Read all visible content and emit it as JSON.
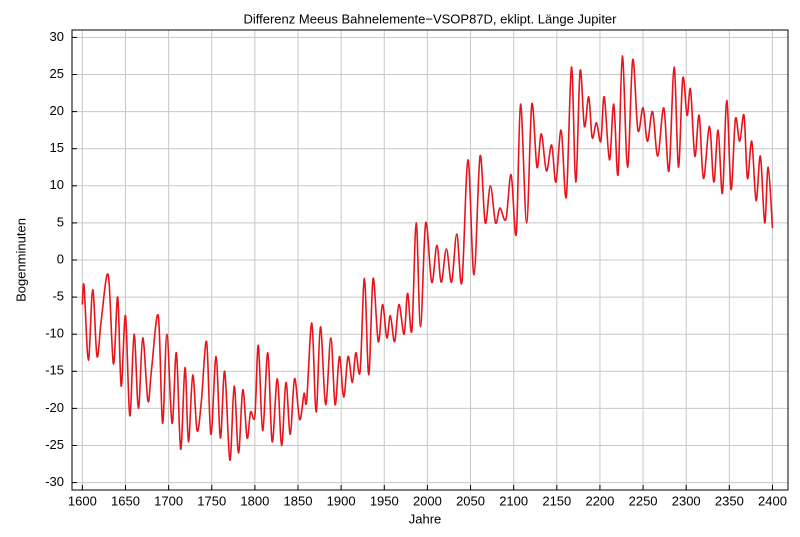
{
  "chart_data": {
    "type": "line",
    "title": "Differenz Meeus Bahnelemente−VSOP87D, eklipt. Länge Jupiter",
    "x_label": "Jahre",
    "y_label": "Bogenminuten",
    "xlim": [
      1588,
      2418
    ],
    "ylim": [
      -31,
      31
    ],
    "xticks": [
      1600,
      1650,
      1700,
      1750,
      1800,
      1850,
      1900,
      1950,
      2000,
      2050,
      2100,
      2150,
      2200,
      2250,
      2300,
      2350,
      2400
    ],
    "yticks": [
      -30,
      -25,
      -20,
      -15,
      -10,
      -5,
      0,
      5,
      10,
      15,
      20,
      25,
      30
    ],
    "grid": true,
    "x": [
      1600,
      1602,
      1607,
      1612,
      1617,
      1622,
      1630,
      1636,
      1641,
      1645,
      1650,
      1655,
      1660,
      1665,
      1670,
      1676,
      1680,
      1688,
      1693,
      1698,
      1704,
      1709,
      1714,
      1719,
      1723,
      1728,
      1733,
      1738,
      1744,
      1749,
      1755,
      1760,
      1765,
      1771,
      1776,
      1781,
      1786,
      1791,
      1795,
      1800,
      1804,
      1809,
      1815,
      1820,
      1826,
      1831,
      1836,
      1841,
      1846,
      1852,
      1857,
      1860,
      1866,
      1871,
      1876,
      1882,
      1888,
      1893,
      1898,
      1903,
      1908,
      1913,
      1917,
      1922,
      1927,
      1932,
      1937,
      1943,
      1948,
      1953,
      1957,
      1962,
      1967,
      1973,
      1977,
      1982,
      1987,
      1992,
      1998,
      2005,
      2011,
      2016,
      2022,
      2028,
      2034,
      2040,
      2047,
      2054,
      2061,
      2067,
      2073,
      2079,
      2084,
      2091,
      2097,
      2103,
      2108,
      2115,
      2121,
      2127,
      2132,
      2138,
      2144,
      2149,
      2155,
      2161,
      2167,
      2172,
      2177,
      2182,
      2187,
      2191,
      2196,
      2201,
      2205,
      2211,
      2216,
      2221,
      2226,
      2232,
      2238,
      2244,
      2250,
      2255,
      2261,
      2267,
      2274,
      2280,
      2286,
      2291,
      2296,
      2301,
      2305,
      2310,
      2315,
      2320,
      2327,
      2332,
      2337,
      2342,
      2347,
      2352,
      2357,
      2362,
      2367,
      2371,
      2376,
      2381,
      2386,
      2391,
      2395,
      2400
    ],
    "series": [
      {
        "name": "Differenz",
        "color": "#e8141c",
        "values": [
          -6,
          -3.5,
          -13.5,
          -4,
          -13,
          -8,
          -2,
          -14,
          -5,
          -17,
          -7.5,
          -21,
          -10,
          -20,
          -10.5,
          -19,
          -15,
          -7.5,
          -22,
          -10,
          -22,
          -12.5,
          -25.5,
          -14.5,
          -24.5,
          -15.5,
          -23,
          -19,
          -11,
          -23.5,
          -13,
          -24,
          -15,
          -27,
          -17,
          -26,
          -17.5,
          -24,
          -20.5,
          -21,
          -11.5,
          -23,
          -12.5,
          -24.5,
          -16,
          -25,
          -16.5,
          -23.5,
          -16,
          -21.5,
          -18,
          -19,
          -8.5,
          -20.5,
          -9,
          -19.5,
          -10.5,
          -19.5,
          -13,
          -18.5,
          -13,
          -16.5,
          -12.5,
          -15,
          -2.5,
          -15.5,
          -2.5,
          -11,
          -6,
          -10.5,
          -7.5,
          -11,
          -6,
          -10,
          -4.5,
          -9.5,
          5,
          -9,
          5,
          -3,
          2,
          -3,
          1.5,
          -3,
          3.5,
          -3,
          13.5,
          -2,
          14,
          5,
          10,
          5,
          7,
          5.5,
          11.5,
          3.5,
          21,
          5,
          21,
          12.5,
          17,
          12,
          15.5,
          10.5,
          17.5,
          8.5,
          26,
          10.5,
          25.5,
          18,
          22,
          16.5,
          18.5,
          16,
          22,
          13.5,
          21,
          11.5,
          27.5,
          12.5,
          27,
          17.5,
          20.5,
          16,
          20,
          14,
          20.5,
          12,
          26,
          12.5,
          24.5,
          19.5,
          23,
          14,
          19.5,
          11,
          18,
          10.5,
          17.5,
          9,
          21.5,
          9.5,
          19,
          16,
          19.5,
          11,
          16,
          8,
          14,
          5,
          12.5,
          4.3
        ]
      }
    ]
  }
}
